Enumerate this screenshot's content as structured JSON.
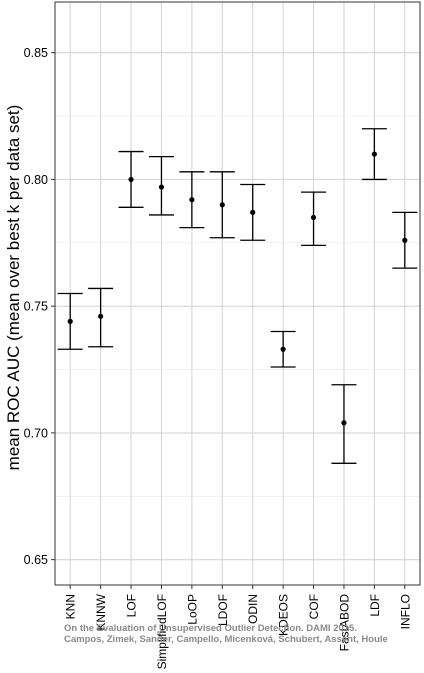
{
  "chart_data": {
    "type": "scatter",
    "ylabel": "mean ROC AUC (mean over best k per data set)",
    "ylim": [
      0.64,
      0.87
    ],
    "yticks": [
      "0.65",
      "0.70",
      "0.75",
      "0.80",
      "0.85"
    ],
    "categories": [
      "KNN",
      "KNNW",
      "LOF",
      "SimplifiedLOF",
      "LoOP",
      "LDOF",
      "ODIN",
      "KDEOS",
      "COF",
      "FastABOD",
      "LDF",
      "INFLO"
    ],
    "values": [
      0.744,
      0.746,
      0.8,
      0.797,
      0.792,
      0.79,
      0.787,
      0.733,
      0.785,
      0.704,
      0.81,
      0.776
    ],
    "lower": [
      0.733,
      0.734,
      0.789,
      0.786,
      0.781,
      0.777,
      0.776,
      0.726,
      0.774,
      0.688,
      0.8,
      0.765
    ],
    "upper": [
      0.755,
      0.757,
      0.811,
      0.809,
      0.803,
      0.803,
      0.798,
      0.74,
      0.795,
      0.719,
      0.82,
      0.787
    ],
    "grid": true
  },
  "watermark": {
    "line1": "On the Evaluation of Unsupervised Outlier Detection. DAMI 2015.",
    "line2": "Campos, Zimek, Sander, Campello, Micenková, Schubert, Assent, Houle"
  }
}
